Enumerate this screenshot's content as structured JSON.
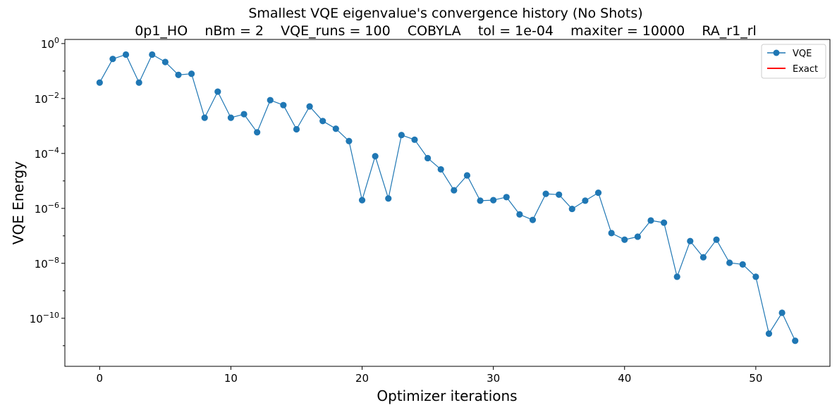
{
  "chart_data": {
    "type": "line",
    "title": "Smallest VQE eigenvalue's convergence history (No Shots)",
    "subtitle": "0p1_HO    nBm = 2    VQE_runs = 100    COBYLA    tol = 1e-04    maxiter = 10000    RA_r1_rl",
    "xlabel": "Optimizer iterations",
    "ylabel": "VQE Energy",
    "yscale": "log",
    "xlim": [
      -2.65,
      55.65
    ],
    "ylim_log10": [
      -11.75,
      0.15
    ],
    "xticks": [
      0,
      10,
      20,
      30,
      40,
      50
    ],
    "xtick_labels": [
      "0",
      "10",
      "20",
      "30",
      "40",
      "50"
    ],
    "ytick_exponents": [
      0,
      -2,
      -4,
      -6,
      -8,
      -10
    ],
    "ytick_labels": [
      {
        "base": "10",
        "exp": "0"
      },
      {
        "base": "10",
        "exp": "−2"
      },
      {
        "base": "10",
        "exp": "−4"
      },
      {
        "base": "10",
        "exp": "−6"
      },
      {
        "base": "10",
        "exp": "−8"
      },
      {
        "base": "10",
        "exp": "−10"
      }
    ],
    "grid": false,
    "legend_position": "top-right",
    "series": [
      {
        "name": "VQE",
        "color": "#1f77b4",
        "marker": "circle",
        "x": [
          0,
          1,
          2,
          3,
          4,
          5,
          6,
          7,
          8,
          9,
          10,
          11,
          12,
          13,
          14,
          15,
          16,
          17,
          18,
          19,
          20,
          21,
          22,
          23,
          24,
          25,
          26,
          27,
          28,
          29,
          30,
          31,
          32,
          33,
          34,
          35,
          36,
          37,
          38,
          39,
          40,
          41,
          42,
          43,
          44,
          45,
          46,
          47,
          48,
          49,
          50,
          51,
          52,
          53
        ],
        "log10_y": [
          -1.42,
          -0.56,
          -0.4,
          -1.42,
          -0.4,
          -0.67,
          -1.14,
          -1.1,
          -2.7,
          -1.75,
          -2.7,
          -2.57,
          -3.23,
          -2.06,
          -2.24,
          -3.12,
          -2.29,
          -2.82,
          -3.1,
          -3.55,
          -5.7,
          -4.1,
          -5.64,
          -3.33,
          -3.5,
          -4.17,
          -4.58,
          -5.34,
          -4.8,
          -5.72,
          -5.7,
          -5.59,
          -6.22,
          -6.42,
          -5.47,
          -5.5,
          -6.02,
          -5.72,
          -5.43,
          -6.9,
          -7.14,
          -7.03,
          -6.44,
          -6.52,
          -8.49,
          -7.19,
          -7.78,
          -7.14,
          -7.98,
          -8.04,
          -8.49,
          -10.56,
          -9.8,
          -10.82
        ]
      },
      {
        "name": "Exact",
        "color": "#ff0000",
        "marker": "none",
        "x": [],
        "log10_y": []
      }
    ]
  }
}
